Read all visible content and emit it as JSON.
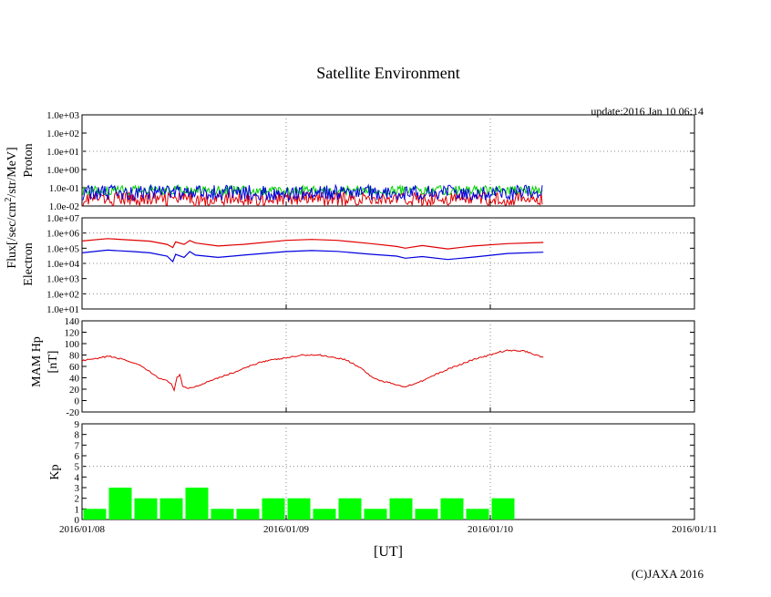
{
  "title": "Satellite Environment",
  "update": "update:2016 Jan 10 06:14",
  "copyright": "(C)JAXA 2016",
  "x_axis": {
    "label": "[UT]",
    "ticks": [
      "2016/01/08",
      "2016/01/09",
      "2016/01/10",
      "2016/01/11"
    ],
    "range": [
      "2016-01-08T00:00",
      "2016-01-11T00:00"
    ]
  },
  "flux_label": {
    "prefix": "Flux[/sec/cm",
    "sup": "2",
    "suffix": "/str/MeV]"
  },
  "colors": {
    "red": "#e00000",
    "blue": "#0000e0",
    "green": "#00d000",
    "kp_bar": "#00ff00",
    "grid": "#888888"
  },
  "chart_data": [
    {
      "type": "line",
      "name": "proton",
      "ylabel": "Proton",
      "yscale": "log",
      "ylim": [
        0.01,
        1000
      ],
      "ytick_labels": [
        "1.0e-02",
        "1.0e-01",
        "1.0e+00",
        "1.0e+01",
        "1.0e+02",
        "1.0e+03"
      ],
      "data_end": "2016-01-10T06:14",
      "series": [
        {
          "color": "red",
          "level": 0.02,
          "spread": [
            0.01,
            0.06
          ]
        },
        {
          "color": "green",
          "level": 0.09,
          "spread": [
            0.04,
            0.13
          ]
        },
        {
          "color": "blue",
          "level": 0.07,
          "spread": [
            0.02,
            0.14
          ]
        }
      ]
    },
    {
      "type": "line",
      "name": "electron",
      "ylabel": "Electron",
      "yscale": "log",
      "ylim": [
        10,
        10000000
      ],
      "ytick_labels": [
        "1.0e+01",
        "1.0e+02",
        "1.0e+03",
        "1.0e+04",
        "1.0e+05",
        "1.0e+06",
        "1.0e+07"
      ],
      "series": [
        {
          "color": "red",
          "points": [
            [
              "2016-01-08T00:00",
              300000
            ],
            [
              "2016-01-08T03:00",
              430000
            ],
            [
              "2016-01-08T06:00",
              340000
            ],
            [
              "2016-01-08T08:00",
              290000
            ],
            [
              "2016-01-08T10:00",
              180000
            ],
            [
              "2016-01-08T10:40",
              110000
            ],
            [
              "2016-01-08T11:00",
              260000
            ],
            [
              "2016-01-08T12:00",
              180000
            ],
            [
              "2016-01-08T12:40",
              320000
            ],
            [
              "2016-01-08T13:20",
              220000
            ],
            [
              "2016-01-08T16:00",
              140000
            ],
            [
              "2016-01-08T19:00",
              180000
            ],
            [
              "2016-01-09T00:00",
              330000
            ],
            [
              "2016-01-09T03:00",
              380000
            ],
            [
              "2016-01-09T06:00",
              330000
            ],
            [
              "2016-01-09T10:00",
              200000
            ],
            [
              "2016-01-09T13:00",
              130000
            ],
            [
              "2016-01-09T14:00",
              100000
            ],
            [
              "2016-01-09T16:00",
              150000
            ],
            [
              "2016-01-09T19:00",
              90000
            ],
            [
              "2016-01-09T22:00",
              140000
            ],
            [
              "2016-01-10T02:00",
              200000
            ],
            [
              "2016-01-10T06:14",
              240000
            ]
          ]
        },
        {
          "color": "blue",
          "points": [
            [
              "2016-01-08T00:00",
              50000
            ],
            [
              "2016-01-08T03:00",
              75000
            ],
            [
              "2016-01-08T06:00",
              60000
            ],
            [
              "2016-01-08T08:00",
              50000
            ],
            [
              "2016-01-08T10:00",
              30000
            ],
            [
              "2016-01-08T10:40",
              13000
            ],
            [
              "2016-01-08T11:00",
              40000
            ],
            [
              "2016-01-08T12:00",
              25000
            ],
            [
              "2016-01-08T12:40",
              60000
            ],
            [
              "2016-01-08T13:20",
              35000
            ],
            [
              "2016-01-08T16:00",
              25000
            ],
            [
              "2016-01-08T19:00",
              35000
            ],
            [
              "2016-01-09T00:00",
              60000
            ],
            [
              "2016-01-09T03:00",
              70000
            ],
            [
              "2016-01-09T06:00",
              62000
            ],
            [
              "2016-01-09T10:00",
              40000
            ],
            [
              "2016-01-09T13:00",
              30000
            ],
            [
              "2016-01-09T14:00",
              22000
            ],
            [
              "2016-01-09T16:00",
              28000
            ],
            [
              "2016-01-09T19:00",
              18000
            ],
            [
              "2016-01-09T22:00",
              26000
            ],
            [
              "2016-01-10T02:00",
              45000
            ],
            [
              "2016-01-10T06:14",
              55000
            ]
          ]
        }
      ]
    },
    {
      "type": "line",
      "name": "mam-hp",
      "ylabel": "MAM Hp",
      "ylabel2": "[nT]",
      "ylim": [
        -20,
        140
      ],
      "yticks": [
        -20,
        0,
        20,
        40,
        60,
        80,
        100,
        120,
        140
      ],
      "series": [
        {
          "color": "red",
          "points": [
            [
              "2016-01-08T00:00",
              70
            ],
            [
              "2016-01-08T02:00",
              74
            ],
            [
              "2016-01-08T03:00",
              78
            ],
            [
              "2016-01-08T05:00",
              72
            ],
            [
              "2016-01-08T07:00",
              60
            ],
            [
              "2016-01-08T08:30",
              45
            ],
            [
              "2016-01-08T09:30",
              36
            ],
            [
              "2016-01-08T10:00",
              35
            ],
            [
              "2016-01-08T10:30",
              30
            ],
            [
              "2016-01-08T10:50",
              18
            ],
            [
              "2016-01-08T11:10",
              40
            ],
            [
              "2016-01-08T11:30",
              45
            ],
            [
              "2016-01-08T11:50",
              25
            ],
            [
              "2016-01-08T12:30",
              22
            ],
            [
              "2016-01-08T13:30",
              25
            ],
            [
              "2016-01-08T15:00",
              35
            ],
            [
              "2016-01-08T18:00",
              50
            ],
            [
              "2016-01-08T21:00",
              68
            ],
            [
              "2016-01-09T00:00",
              75
            ],
            [
              "2016-01-09T02:00",
              80
            ],
            [
              "2016-01-09T04:00",
              80
            ],
            [
              "2016-01-09T07:00",
              72
            ],
            [
              "2016-01-09T09:00",
              55
            ],
            [
              "2016-01-09T10:00",
              42
            ],
            [
              "2016-01-09T11:00",
              35
            ],
            [
              "2016-01-09T13:00",
              28
            ],
            [
              "2016-01-09T14:00",
              24
            ],
            [
              "2016-01-09T16:00",
              35
            ],
            [
              "2016-01-09T19:00",
              55
            ],
            [
              "2016-01-09T22:00",
              72
            ],
            [
              "2016-01-10T00:00",
              80
            ],
            [
              "2016-01-10T01:00",
              85
            ],
            [
              "2016-01-10T02:00",
              88
            ],
            [
              "2016-01-10T04:00",
              87
            ],
            [
              "2016-01-10T06:14",
              76
            ]
          ]
        }
      ]
    },
    {
      "type": "bar",
      "name": "kp",
      "ylabel": "Kp",
      "ylim": [
        0,
        9
      ],
      "yticks": [
        0,
        1,
        2,
        3,
        4,
        5,
        6,
        7,
        8,
        9
      ],
      "interval_hours": 3,
      "values": [
        1,
        3,
        2,
        2,
        3,
        1,
        1,
        2,
        2,
        1,
        2,
        1,
        2,
        1,
        2,
        1,
        2
      ]
    }
  ]
}
